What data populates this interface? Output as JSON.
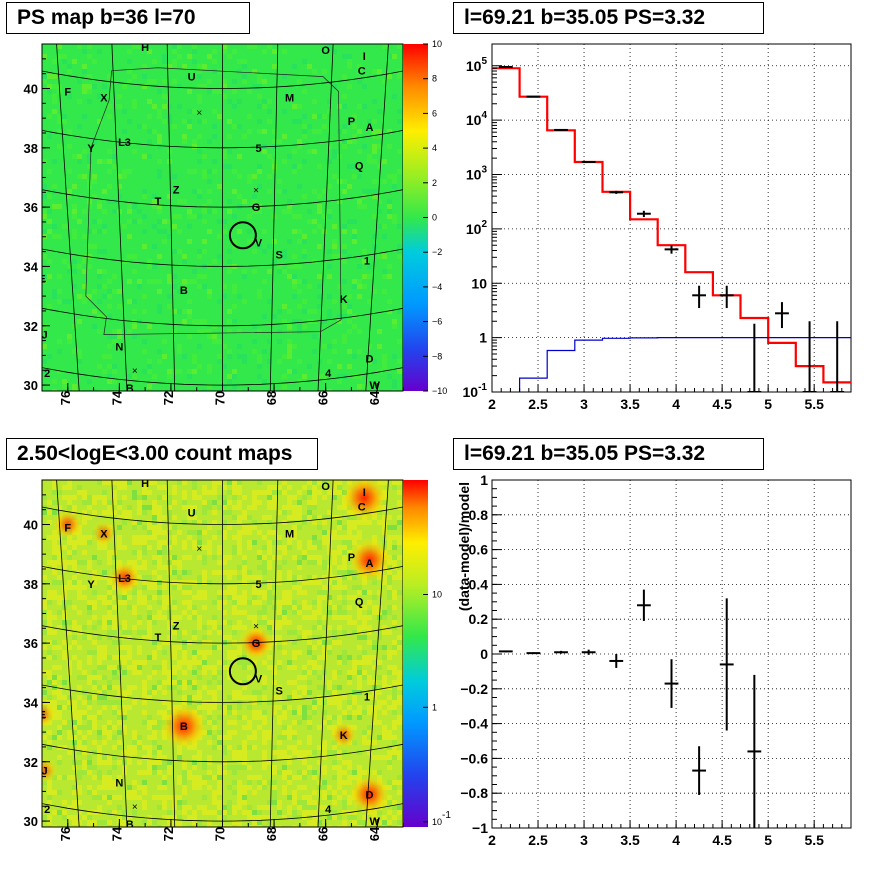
{
  "panels": {
    "top_left_title": "PS map b=36 l=70",
    "top_right_title": "l=69.21 b=35.05 PS=3.32",
    "bottom_left_title": "2.50<logE<3.00 count maps",
    "bottom_right_title": "l=69.21 b=35.05 PS=3.32"
  },
  "colors": {
    "map_green": "#33e84a",
    "model_red": "#ff0000",
    "background_blue": "#0000cc",
    "data_black": "#000000",
    "grid": "#000000"
  },
  "chart_data": [
    {
      "type": "heatmap",
      "title": "PS map b=36 l=70",
      "x_ticks": [
        "76",
        "74",
        "72",
        "70",
        "68",
        "66",
        "64"
      ],
      "y_ticks": [
        "30",
        "32",
        "34",
        "36",
        "38",
        "40"
      ],
      "xlim": [
        77,
        63
      ],
      "ylim": [
        29.8,
        41.5
      ],
      "colorbar": {
        "ticks": [
          "10",
          "8",
          "6",
          "4",
          "2",
          "0",
          "−2",
          "−4",
          "−6",
          "−8",
          "−10"
        ],
        "range": [
          -10,
          10
        ]
      },
      "source_labels": [
        {
          "t": "H",
          "l": 73.0,
          "b": 41.4
        },
        {
          "t": "O",
          "l": 66.0,
          "b": 41.3
        },
        {
          "t": "I",
          "l": 64.5,
          "b": 41.1
        },
        {
          "t": "C",
          "l": 64.6,
          "b": 40.6
        },
        {
          "t": "U",
          "l": 71.2,
          "b": 40.4
        },
        {
          "t": "F",
          "l": 76.0,
          "b": 39.9
        },
        {
          "t": "X",
          "l": 74.6,
          "b": 39.7
        },
        {
          "t": "M",
          "l": 67.4,
          "b": 39.7
        },
        {
          "t": "P",
          "l": 65.0,
          "b": 38.9
        },
        {
          "t": "A",
          "l": 64.3,
          "b": 38.7
        },
        {
          "t": "L3",
          "l": 73.8,
          "b": 38.2
        },
        {
          "t": "Y",
          "l": 75.1,
          "b": 38.0
        },
        {
          "t": "5",
          "l": 68.6,
          "b": 38.0
        },
        {
          "t": "Q",
          "l": 64.7,
          "b": 37.4
        },
        {
          "t": "Z",
          "l": 71.8,
          "b": 36.6
        },
        {
          "t": "T",
          "l": 72.5,
          "b": 36.2
        },
        {
          "t": "G",
          "l": 68.7,
          "b": 36.0
        },
        {
          "t": "V",
          "l": 68.6,
          "b": 34.8
        },
        {
          "t": "S",
          "l": 67.8,
          "b": 34.4
        },
        {
          "t": "1",
          "l": 64.4,
          "b": 34.2
        },
        {
          "t": "E",
          "l": 77.0,
          "b": 33.6
        },
        {
          "t": "B",
          "l": 71.5,
          "b": 33.2
        },
        {
          "t": "K",
          "l": 65.3,
          "b": 32.9
        },
        {
          "t": "J",
          "l": 76.9,
          "b": 31.7
        },
        {
          "t": "N",
          "l": 74.0,
          "b": 31.3
        },
        {
          "t": "D",
          "l": 64.3,
          "b": 30.9
        },
        {
          "t": "2",
          "l": 76.8,
          "b": 30.4
        },
        {
          "t": "4",
          "l": 65.9,
          "b": 30.4
        },
        {
          "t": "B",
          "l": 73.6,
          "b": 29.9
        },
        {
          "t": "W",
          "l": 64.1,
          "b": 30.0
        }
      ],
      "crosses": [
        {
          "l": 70.9,
          "b": 39.2
        },
        {
          "l": 68.7,
          "b": 36.6
        },
        {
          "l": 73.4,
          "b": 30.5
        }
      ],
      "center_circle": {
        "l": 69.21,
        "b": 35.05
      }
    },
    {
      "type": "line",
      "title": "l=69.21 b=35.05 PS=3.32",
      "xlabel": "",
      "ylabel": "",
      "x_ticks": [
        "2",
        "2.5",
        "3",
        "3.5",
        "4",
        "4.5",
        "5",
        "5.5"
      ],
      "y_ticks": [
        "10^5",
        "10^4",
        "10^3",
        "10^2",
        "10",
        "1",
        "10^-1"
      ],
      "xlim": [
        2.0,
        5.9
      ],
      "ylim_log10": [
        -1,
        5.4
      ],
      "log_y": true,
      "grid": true,
      "series": [
        {
          "style": "step",
          "color": "#ff0000",
          "bins": [
            [
              2.0,
              2.3,
              90000
            ],
            [
              2.3,
              2.6,
              27000
            ],
            [
              2.6,
              2.9,
              6500
            ],
            [
              2.9,
              3.2,
              1700
            ],
            [
              3.2,
              3.5,
              480
            ],
            [
              3.5,
              3.8,
              150
            ],
            [
              3.8,
              4.1,
              50
            ],
            [
              4.1,
              4.4,
              16
            ],
            [
              4.4,
              4.7,
              6
            ],
            [
              4.7,
              5.0,
              2.3
            ],
            [
              5.0,
              5.3,
              0.8
            ],
            [
              5.3,
              5.6,
              0.3
            ],
            [
              5.6,
              5.9,
              0.15
            ]
          ]
        },
        {
          "style": "step",
          "color": "#0000cc",
          "bins": [
            [
              2.0,
              2.3,
              0.06
            ],
            [
              2.3,
              2.6,
              0.18
            ],
            [
              2.6,
              2.9,
              0.58
            ],
            [
              2.9,
              3.2,
              0.9
            ],
            [
              3.2,
              3.5,
              0.97
            ],
            [
              3.5,
              3.8,
              0.99
            ],
            [
              3.8,
              4.1,
              1.0
            ],
            [
              4.1,
              4.4,
              1.0
            ],
            [
              4.4,
              4.7,
              1.0
            ],
            [
              4.7,
              5.0,
              1.0
            ],
            [
              5.0,
              5.3,
              1.0
            ],
            [
              5.3,
              5.6,
              1.0
            ],
            [
              5.6,
              5.9,
              1.0
            ]
          ]
        },
        {
          "style": "errorbar",
          "color": "#000000",
          "points": [
            [
              2.15,
              0.15,
              95000,
              93000,
              97000
            ],
            [
              2.45,
              0.15,
              27000,
              26500,
              27500
            ],
            [
              2.75,
              0.15,
              6600,
              6500,
              6700
            ],
            [
              3.05,
              0.15,
              1700,
              1650,
              1750
            ],
            [
              3.35,
              0.15,
              470,
              440,
              500
            ],
            [
              3.65,
              0.15,
              190,
              165,
              215
            ],
            [
              3.95,
              0.15,
              42,
              35,
              50
            ],
            [
              4.25,
              0.15,
              6,
              3.5,
              9
            ],
            [
              4.55,
              0.15,
              6,
              3.5,
              9
            ],
            [
              4.85,
              0.15,
              0.01,
              0.01,
              1.8
            ],
            [
              5.15,
              0.15,
              2.8,
              1.5,
              4.5
            ],
            [
              5.45,
              0.15,
              0.01,
              0.01,
              2.0
            ],
            [
              5.75,
              0.15,
              0.01,
              0.01,
              2.0
            ]
          ]
        }
      ]
    },
    {
      "type": "heatmap",
      "title": "2.50<logE<3.00 count maps",
      "x_ticks": [
        "76",
        "74",
        "72",
        "70",
        "68",
        "66",
        "64"
      ],
      "y_ticks": [
        "30",
        "32",
        "34",
        "36",
        "38",
        "40"
      ],
      "xlim": [
        77,
        63
      ],
      "ylim": [
        29.8,
        41.5
      ],
      "colorbar": {
        "ticks": [
          "10",
          "1",
          "10^-1"
        ],
        "log": true
      },
      "bright_sources": [
        {
          "l": 64.5,
          "b": 40.9,
          "i": 1.0
        },
        {
          "l": 64.3,
          "b": 38.8,
          "i": 0.9
        },
        {
          "l": 71.5,
          "b": 33.2,
          "i": 1.0
        },
        {
          "l": 64.3,
          "b": 30.9,
          "i": 0.8
        },
        {
          "l": 68.7,
          "b": 36.0,
          "i": 0.6
        },
        {
          "l": 73.8,
          "b": 38.2,
          "i": 0.5
        },
        {
          "l": 76.0,
          "b": 40.0,
          "i": 0.4
        },
        {
          "l": 65.3,
          "b": 32.9,
          "i": 0.3
        },
        {
          "l": 77.0,
          "b": 33.6,
          "i": 0.3
        },
        {
          "l": 76.9,
          "b": 31.7,
          "i": 0.25
        },
        {
          "l": 74.6,
          "b": 39.7,
          "i": 0.25
        }
      ],
      "center_circle": {
        "l": 69.21,
        "b": 35.05
      }
    },
    {
      "type": "scatter",
      "title": "l=69.21 b=35.05 PS=3.32",
      "xlabel": "",
      "ylabel": "(data-model)/model",
      "x_ticks": [
        "2",
        "2.5",
        "3",
        "3.5",
        "4",
        "4.5",
        "5",
        "5.5"
      ],
      "y_ticks": [
        "1",
        "0.8",
        "0.6",
        "0.4",
        "0.2",
        "0",
        "−0.2",
        "−0.4",
        "−0.6",
        "−0.8",
        "−1"
      ],
      "xlim": [
        2.0,
        5.9
      ],
      "ylim": [
        -1,
        1
      ],
      "grid": true,
      "points": [
        [
          2.15,
          0.15,
          0.015,
          0.005
        ],
        [
          2.45,
          0.15,
          0.005,
          0.005
        ],
        [
          2.75,
          0.15,
          0.01,
          0.008
        ],
        [
          3.05,
          0.15,
          0.01,
          0.015
        ],
        [
          3.35,
          0.15,
          -0.04,
          0.04
        ],
        [
          3.65,
          0.15,
          0.28,
          0.09
        ],
        [
          3.95,
          0.15,
          -0.17,
          0.14
        ],
        [
          4.25,
          0.15,
          -0.67,
          0.14
        ],
        [
          4.55,
          0.15,
          -0.06,
          0.38
        ],
        [
          4.85,
          0.15,
          -0.56,
          0.44
        ]
      ]
    }
  ]
}
